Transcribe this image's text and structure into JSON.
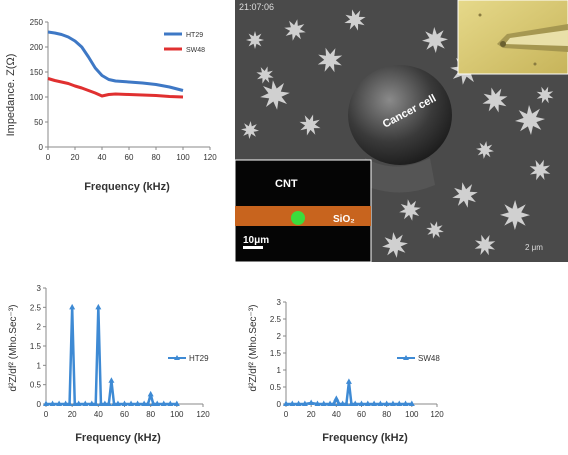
{
  "chart_data": [
    {
      "type": "line",
      "x": [
        0,
        5,
        10,
        15,
        20,
        25,
        30,
        35,
        40,
        45,
        50,
        60,
        70,
        80,
        90,
        100
      ],
      "series": [
        {
          "name": "HT29",
          "values": [
            230,
            228,
            225,
            220,
            212,
            200,
            180,
            158,
            143,
            135,
            132,
            130,
            128,
            125,
            120,
            113
          ],
          "color": "#3e78c5"
        },
        {
          "name": "SW48",
          "values": [
            137,
            133,
            130,
            127,
            122,
            118,
            113,
            108,
            102,
            105,
            106,
            105,
            104,
            103,
            101,
            100
          ],
          "color": "#e03030"
        }
      ],
      "xlabel": "Frequency (kHz)",
      "ylabel": "Impedance. Z(Ω)",
      "xlim": [
        0,
        120
      ],
      "ylim": [
        0,
        250
      ],
      "xticks": [
        "0",
        "20",
        "40",
        "60",
        "80",
        "100",
        "120"
      ],
      "yticks": [
        "0",
        "50",
        "100",
        "150",
        "200",
        "250"
      ],
      "grid": false,
      "legend": "top-right"
    },
    {
      "type": "line",
      "x": [
        0,
        5,
        10,
        15,
        18,
        20,
        22,
        25,
        30,
        35,
        38,
        40,
        42,
        45,
        48,
        50,
        52,
        55,
        60,
        65,
        70,
        75,
        78,
        80,
        82,
        85,
        90,
        95,
        100
      ],
      "series": [
        {
          "name": "HT29",
          "values": [
            0,
            0,
            0,
            0,
            0,
            2.5,
            0,
            0,
            0,
            0,
            0,
            2.5,
            0,
            0,
            0,
            0.6,
            0,
            0,
            0,
            0,
            0,
            0,
            0,
            0.25,
            0,
            0,
            0,
            0,
            0
          ],
          "color": "#3e8ad4"
        }
      ],
      "xlabel": "Frequency (kHz)",
      "ylabel": "d²Z/df² (Mho.Sec⁻³)",
      "xlim": [
        0,
        120
      ],
      "ylim": [
        0,
        3
      ],
      "xticks": [
        "0",
        "20",
        "40",
        "60",
        "80",
        "100",
        "120"
      ],
      "yticks": [
        "0",
        "0.5",
        "1",
        "1.5",
        "2",
        "2.5",
        "3"
      ],
      "grid": false,
      "legend": "right"
    },
    {
      "type": "line",
      "x": [
        0,
        5,
        10,
        15,
        20,
        25,
        30,
        35,
        38,
        40,
        42,
        45,
        48,
        50,
        52,
        55,
        60,
        65,
        70,
        75,
        80,
        85,
        90,
        95,
        100
      ],
      "series": [
        {
          "name": "SW48",
          "values": [
            0,
            0,
            0,
            0,
            0.03,
            0,
            0,
            0,
            0,
            0.15,
            0,
            0,
            0,
            0.65,
            0,
            0,
            0,
            0,
            0,
            0,
            0,
            0,
            0,
            0,
            0
          ],
          "color": "#3e8ad4"
        }
      ],
      "xlabel": "Frequency (kHz)",
      "ylabel": "d²Z/df² (Mho.Sec⁻³)",
      "xlim": [
        0,
        120
      ],
      "ylim": [
        0,
        3
      ],
      "xticks": [
        "0",
        "20",
        "40",
        "60",
        "80",
        "100",
        "120"
      ],
      "yticks": [
        "0",
        "0.5",
        "1",
        "1.5",
        "2",
        "2.5",
        "3"
      ],
      "grid": false,
      "legend": "right"
    }
  ],
  "micrograph": {
    "timestamp": "21:07:06",
    "cell_label": "Cancer cell",
    "cnt_label": "CNT",
    "sio2_label": "SiO₂",
    "scale_bar": "10μm",
    "sem_scale": "2 μm",
    "colors": {
      "nanotube_band": "#c8641e",
      "cell_fluorescence": "#3cdc3c",
      "inset_bg": "#d8c96e"
    }
  }
}
